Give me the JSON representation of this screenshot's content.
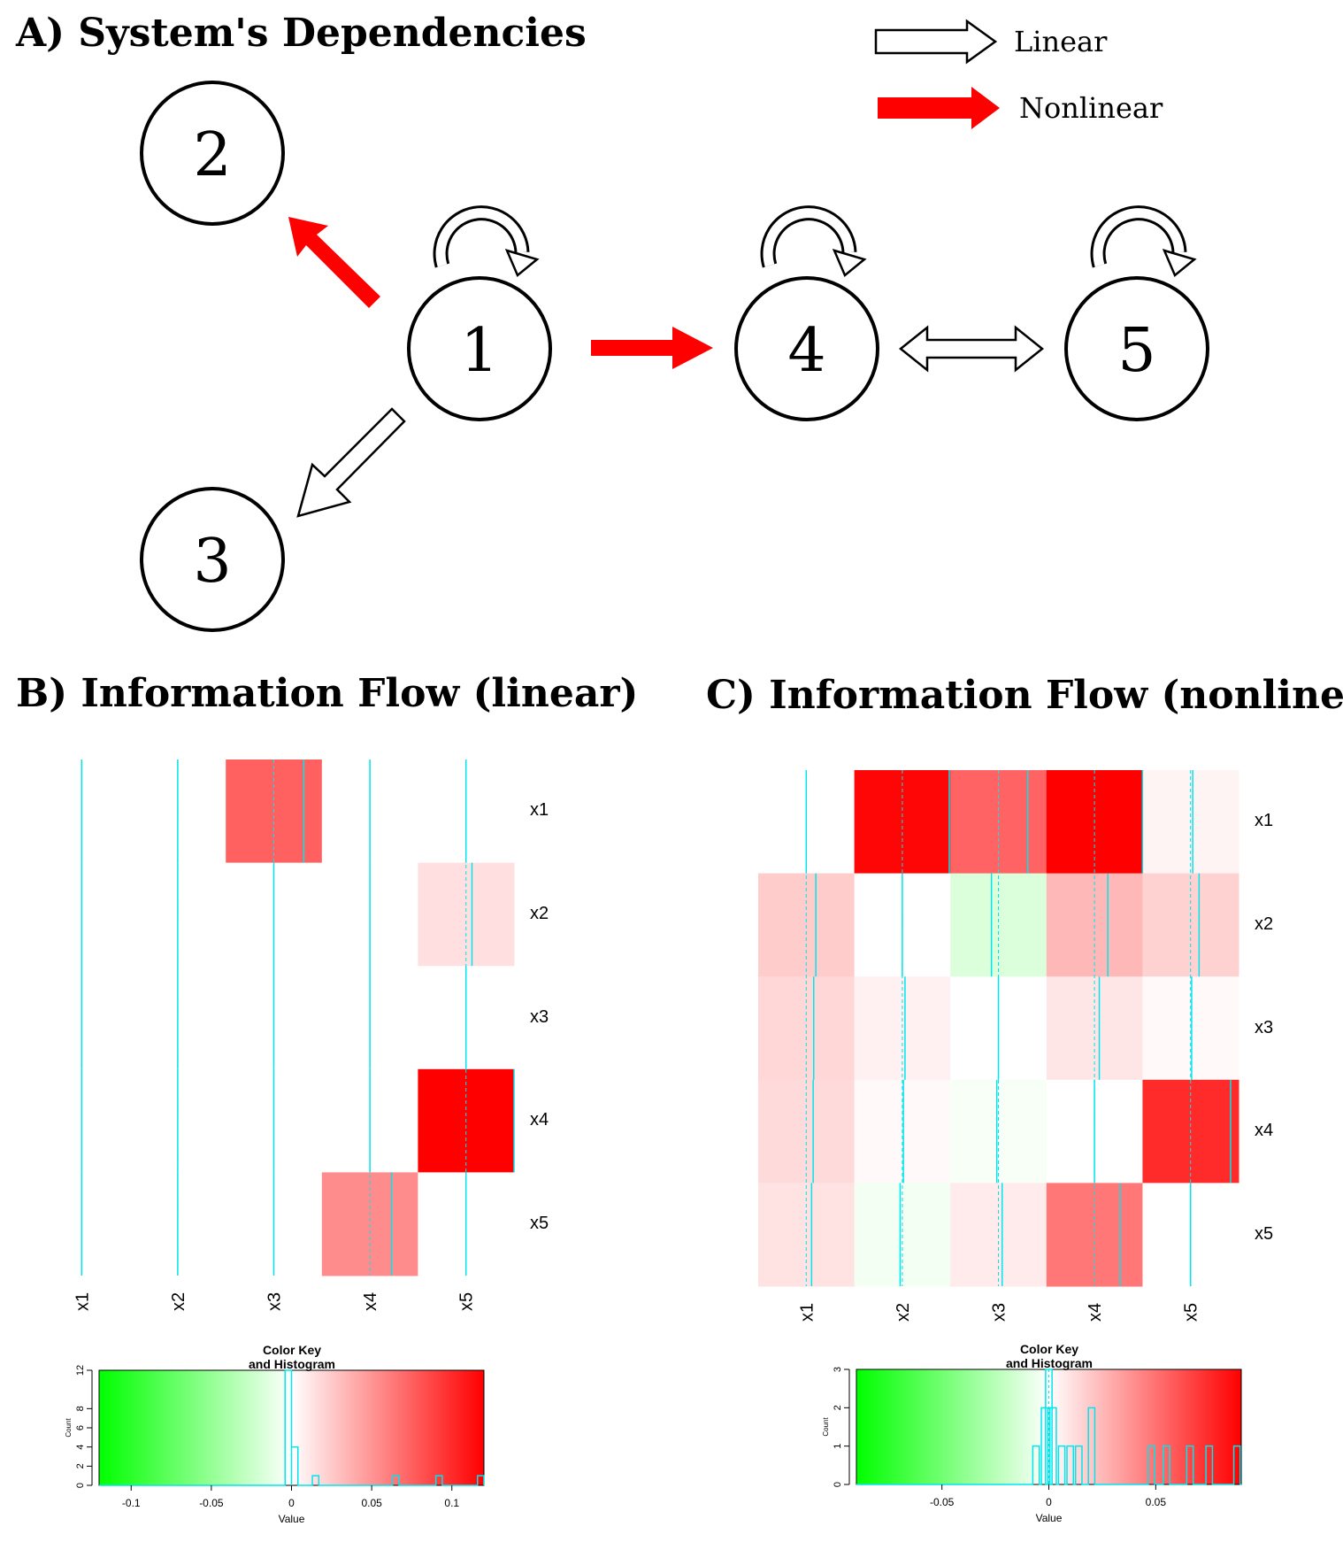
{
  "colors": {
    "linear_fill": "#ffffff",
    "nonlinear_fill": "#ff0000",
    "trace": "#00e5ee"
  },
  "panel_a": {
    "title": "A) System's Dependencies",
    "legend": {
      "linear": "Linear",
      "nonlinear": "Nonlinear"
    },
    "nodes": [
      {
        "id": "1",
        "label": "1"
      },
      {
        "id": "2",
        "label": "2"
      },
      {
        "id": "3",
        "label": "3"
      },
      {
        "id": "4",
        "label": "4"
      },
      {
        "id": "5",
        "label": "5"
      }
    ],
    "edges": [
      {
        "from": "1",
        "to": "2",
        "type": "nonlinear"
      },
      {
        "from": "1",
        "to": "3",
        "type": "linear"
      },
      {
        "from": "1",
        "to": "4",
        "type": "nonlinear"
      },
      {
        "from": "4",
        "to": "5",
        "type": "linear",
        "bidirectional": true
      },
      {
        "from": "1",
        "to": "1",
        "type": "linear"
      },
      {
        "from": "4",
        "to": "4",
        "type": "linear"
      },
      {
        "from": "5",
        "to": "5",
        "type": "linear"
      }
    ]
  },
  "panel_b": {
    "title": "B) Information Flow (linear)",
    "rows": [
      "x1",
      "x2",
      "x3",
      "x4",
      "x5"
    ],
    "cols": [
      "x1",
      "x2",
      "x3",
      "x4",
      "x5"
    ],
    "matrix": [
      [
        0,
        0,
        0.075,
        0,
        0
      ],
      [
        0,
        0,
        0,
        0,
        0.015
      ],
      [
        0,
        0,
        0,
        0,
        0
      ],
      [
        0,
        0,
        0,
        0,
        0.12
      ],
      [
        0,
        0,
        0,
        0.054,
        0
      ]
    ],
    "key": {
      "title_line1": "Color Key",
      "title_line2": "and Histogram",
      "x_label": "Value",
      "y_label": "Count",
      "xlim": [
        -0.12,
        0.12
      ],
      "ylim": [
        0,
        12
      ],
      "x_ticks": [
        -0.1,
        -0.05,
        0,
        0.05,
        0.1
      ],
      "x_tick_labels": [
        "-0.1",
        "-0.05",
        "0",
        "0.05",
        "0.1"
      ],
      "y_ticks": [
        0,
        2,
        4,
        6,
        8,
        12
      ],
      "y_tick_labels": [
        "0",
        "2",
        "4",
        "6",
        "8",
        "12"
      ],
      "histogram_bins": [
        {
          "x": -0.002,
          "count": 12
        },
        {
          "x": 0.002,
          "count": 4
        },
        {
          "x": 0.015,
          "count": 1
        },
        {
          "x": 0.065,
          "count": 1
        },
        {
          "x": 0.092,
          "count": 1
        },
        {
          "x": 0.118,
          "count": 1
        }
      ]
    }
  },
  "panel_c": {
    "title": "C) Information Flow (nonlinear)",
    "rows": [
      "x1",
      "x2",
      "x3",
      "x4",
      "x5"
    ],
    "cols": [
      "x1",
      "x2",
      "x3",
      "x4",
      "x5"
    ],
    "matrix": [
      [
        0,
        0.088,
        0.055,
        0.09,
        0.004
      ],
      [
        0.018,
        0,
        -0.013,
        0.025,
        0.016
      ],
      [
        0.014,
        0.005,
        0,
        0.009,
        0.002
      ],
      [
        0.013,
        0.002,
        -0.003,
        0,
        0.075
      ],
      [
        0.01,
        -0.004,
        0.007,
        0.048,
        0
      ]
    ],
    "key": {
      "title_line1": "Color Key",
      "title_line2": "and Histogram",
      "x_label": "Value",
      "y_label": "Count",
      "xlim": [
        -0.09,
        0.09
      ],
      "ylim": [
        0,
        3
      ],
      "x_ticks": [
        -0.05,
        0,
        0.05
      ],
      "x_tick_labels": [
        "-0.05",
        "0",
        "0.05"
      ],
      "y_ticks": [
        0,
        1,
        2,
        3
      ],
      "y_tick_labels": [
        "0",
        "1",
        "2",
        "3"
      ],
      "histogram_bins": [
        {
          "x": -0.006,
          "count": 1
        },
        {
          "x": -0.002,
          "count": 2
        },
        {
          "x": 0.0,
          "count": 3
        },
        {
          "x": 0.002,
          "count": 2
        },
        {
          "x": 0.006,
          "count": 1
        },
        {
          "x": 0.01,
          "count": 1
        },
        {
          "x": 0.014,
          "count": 1
        },
        {
          "x": 0.02,
          "count": 2
        },
        {
          "x": 0.048,
          "count": 1
        },
        {
          "x": 0.055,
          "count": 1
        },
        {
          "x": 0.066,
          "count": 1
        },
        {
          "x": 0.075,
          "count": 1
        },
        {
          "x": 0.088,
          "count": 1
        }
      ]
    }
  }
}
